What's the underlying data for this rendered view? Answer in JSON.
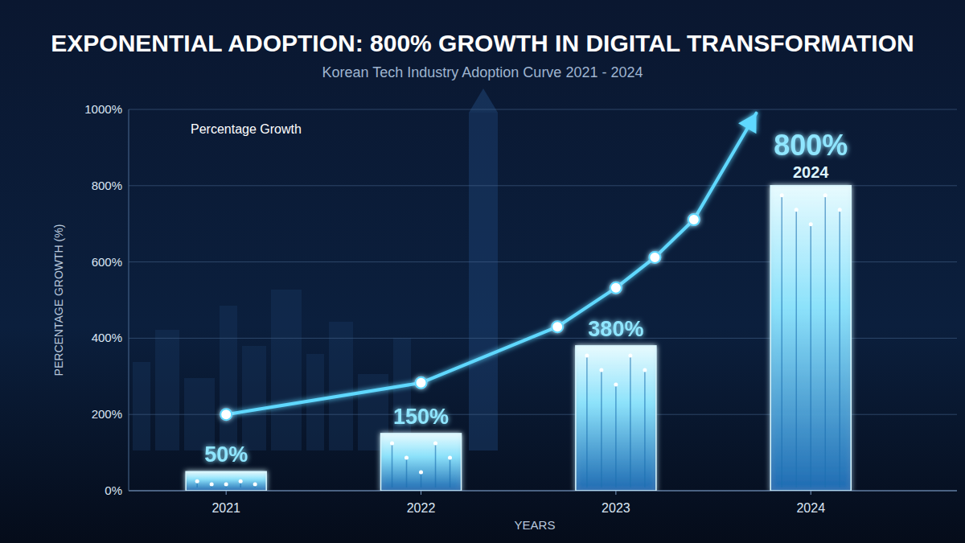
{
  "chart_data": {
    "type": "bar",
    "title": "EXPONENTIAL ADOPTION: 800% GROWTH IN DIGITAL TRANSFORMATION",
    "subtitle": "Korean Tech Industry Adoption Curve 2021 - 2024",
    "x_label": "YEARS",
    "y_label": "PERCENTAGE GROWTH (%)",
    "x": [
      2021,
      2022,
      2023,
      2024
    ],
    "xlim": [
      2020.5,
      2024.75
    ],
    "xticks": [
      2021,
      2022,
      2023,
      2024
    ],
    "ylim": [
      0,
      1000
    ],
    "yticks": [
      {
        "value": 0,
        "label": "0%"
      },
      {
        "value": 200,
        "label": "200%"
      },
      {
        "value": 400,
        "label": "400%"
      },
      {
        "value": 600,
        "label": "600%"
      },
      {
        "value": 800,
        "label": "800%"
      },
      {
        "value": 1000,
        "label": "1000%"
      }
    ],
    "grid": true,
    "legend": "upper left",
    "data_labels": true,
    "series": [
      {
        "type": "bar",
        "color": "#8fe6ff",
        "values": [
          50,
          150,
          380,
          800
        ],
        "value_labels": [
          "50%",
          "150%",
          "380%",
          "800%"
        ]
      },
      {
        "type": "line",
        "name": "Percentage Growth",
        "color": "#5fd8ff",
        "marker": "circle",
        "x": [
          2021,
          2022,
          2022.7,
          2023,
          2023.2,
          2023.4,
          2023.72
        ],
        "values": [
          200,
          283,
          430,
          532,
          612,
          711,
          990
        ]
      }
    ]
  }
}
